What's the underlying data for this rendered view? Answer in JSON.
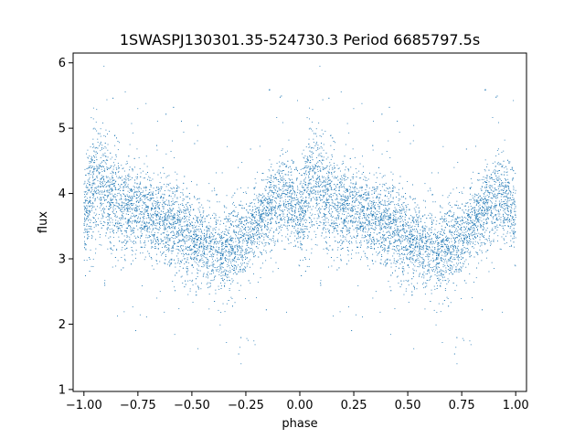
{
  "chart_data": {
    "type": "scatter",
    "title": "1SWASPJ130301.35-524730.3 Period 6685797.5s",
    "xlabel": "phase",
    "ylabel": "flux",
    "xlim": [
      -1.05,
      1.05
    ],
    "ylim": [
      0.97,
      6.15
    ],
    "xticks": [
      -1.0,
      -0.75,
      -0.5,
      -0.25,
      0.0,
      0.25,
      0.5,
      0.75,
      1.0
    ],
    "xtick_labels": [
      "−1.00",
      "−0.75",
      "−0.50",
      "−0.25",
      "0.00",
      "0.25",
      "0.50",
      "0.75",
      "1.00"
    ],
    "yticks": [
      1,
      2,
      3,
      4,
      5,
      6
    ],
    "ytick_labels": [
      "1",
      "2",
      "3",
      "4",
      "5",
      "6"
    ],
    "grid": false,
    "point_color": "#1f77b4",
    "series": [
      {
        "profile": {
          "phase": [
            0.0,
            0.05,
            0.1,
            0.15,
            0.2,
            0.25,
            0.3,
            0.35,
            0.4,
            0.45,
            0.5,
            0.55,
            0.6,
            0.65,
            0.7,
            0.75,
            0.8,
            0.85,
            0.9,
            0.95,
            1.0
          ],
          "median_flux": [
            3.6,
            4.2,
            4.05,
            3.9,
            3.8,
            3.72,
            3.65,
            3.6,
            3.55,
            3.45,
            3.3,
            3.2,
            3.15,
            3.12,
            3.2,
            3.35,
            3.55,
            3.75,
            3.9,
            3.95,
            3.6
          ],
          "scatter": [
            0.35,
            0.45,
            0.42,
            0.4,
            0.38,
            0.35,
            0.33,
            0.32,
            0.33,
            0.33,
            0.32,
            0.32,
            0.33,
            0.35,
            0.33,
            0.3,
            0.3,
            0.3,
            0.3,
            0.32,
            0.35
          ]
        }
      }
    ]
  }
}
